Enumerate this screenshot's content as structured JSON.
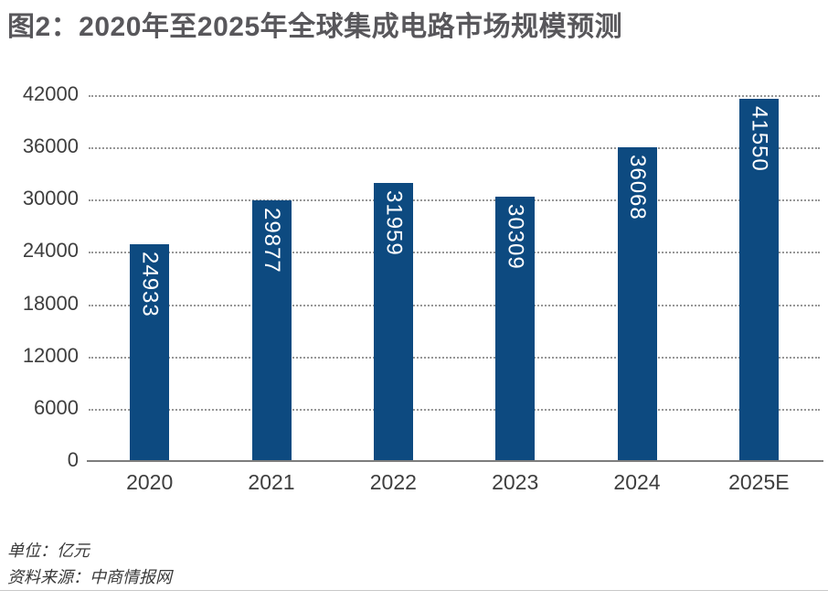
{
  "page": {
    "title": "图2：2020年至2025年全球集成电路市场规模预测"
  },
  "chart_data": {
    "type": "bar",
    "title": "2020年至2025年全球集成电路市场规模预测",
    "categories": [
      "2020",
      "2021",
      "2022",
      "2023",
      "2024",
      "2025E"
    ],
    "values": [
      24933,
      29877,
      31959,
      30309,
      36068,
      41550
    ],
    "xlabel": "",
    "ylabel": "",
    "ylim": [
      0,
      42000
    ],
    "yticks": [
      0,
      6000,
      12000,
      18000,
      24000,
      30000,
      36000,
      42000
    ],
    "grid": "horizontal-dotted",
    "legend_position": "none",
    "bar_color": "#0d4a80",
    "bar_value_label_color": "#ffffff",
    "bar_value_label_orientation": "rotated-90-clockwise",
    "axis_line_color": "#7d7d7d",
    "gridline_color": "#979797",
    "tick_label_color": "#3e3e3e"
  },
  "footer": {
    "unit_label": "单位：亿元",
    "source_label": "资料来源：中商情报网"
  }
}
